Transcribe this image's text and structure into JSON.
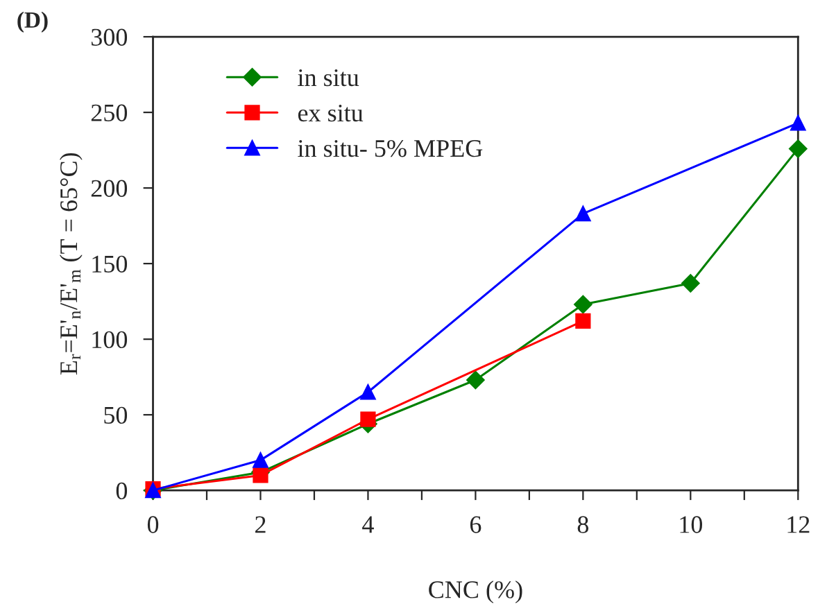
{
  "chart_data": {
    "type": "line",
    "xlabel": "CNC (%)",
    "ylabel": "E$_{r}$=E'$_{n}$/E'$_{m}$ (T = 65°C)",
    "annotations": [
      "(D)"
    ],
    "xlim": [
      0,
      12
    ],
    "xticks": [
      0,
      {
        "value": 1,
        "label": null
      },
      2,
      {
        "value": 3,
        "label": null
      },
      4,
      {
        "value": 5,
        "label": null
      },
      6,
      {
        "value": 7,
        "label": null
      },
      8,
      {
        "value": 9,
        "label": null
      },
      10,
      {
        "value": 11,
        "label": null
      },
      12
    ],
    "ylim": [
      0,
      300
    ],
    "yticks": [
      0,
      50,
      100,
      150,
      200,
      250,
      300
    ],
    "grid": false,
    "legend": "top left",
    "series": [
      {
        "name": "in situ",
        "color": "#008000",
        "marker": "diamond",
        "x": [
          0,
          2,
          4,
          6,
          8,
          10,
          12
        ],
        "values": [
          0,
          12,
          44,
          73,
          123,
          137,
          226
        ]
      },
      {
        "name": "ex situ",
        "color": "#ff0000",
        "marker": "square",
        "x": [
          0,
          2,
          4,
          8
        ],
        "values": [
          1,
          10,
          47,
          112
        ]
      },
      {
        "name": "in situ- 5% MPEG",
        "color": "#0000ff",
        "marker": "triangle",
        "x": [
          0,
          2,
          4,
          8,
          12
        ],
        "values": [
          0,
          20,
          65,
          183,
          243
        ]
      }
    ]
  }
}
